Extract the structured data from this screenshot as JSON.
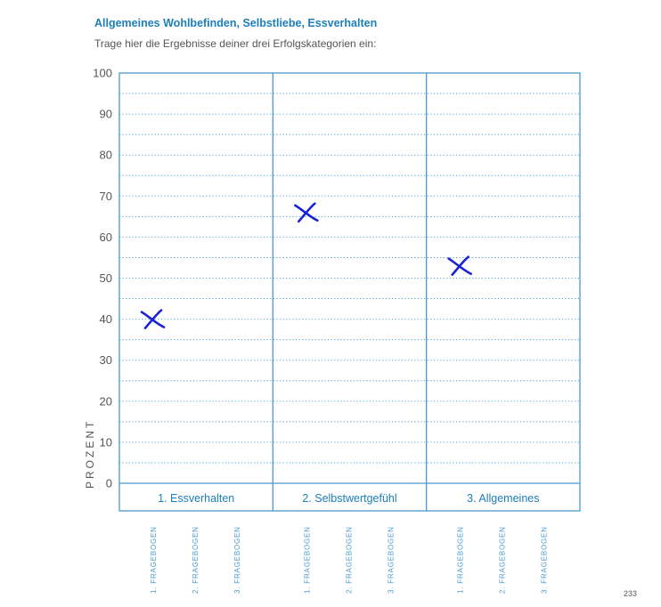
{
  "page": {
    "title": "Allgemeines Wohlbefinden, Selbstliebe, Essverhalten",
    "subtitle": "Trage hier die Ergebnisse deiner drei Erfolgskategorien ein:",
    "page_number": "233"
  },
  "colors": {
    "accent": "#1c7fb9",
    "grid": "#4a9bd0",
    "text": "#555555",
    "marker": "#1a22d6"
  },
  "chart_data": {
    "type": "scatter",
    "title": "",
    "ylabel": "PROZENT",
    "xlabel": "",
    "ylim": [
      0,
      100
    ],
    "yticks": [
      0,
      10,
      20,
      30,
      40,
      50,
      60,
      70,
      80,
      90,
      100
    ],
    "minor_grid": "dotted lines every 5",
    "categories": [
      "1. Essverhalten",
      "2. Selbstwertgefühl",
      "3. Allgemeines"
    ],
    "sub_categories": [
      "1. FRAGEBOGEN",
      "2. FRAGEBOGEN",
      "3. FRAGEBOGEN"
    ],
    "marker": "handwritten X",
    "points": [
      {
        "category": "1. Essverhalten",
        "sub_category": "1. FRAGEBOGEN",
        "y": 40
      },
      {
        "category": "2. Selbstwertgefühl",
        "sub_category": "1. FRAGEBOGEN",
        "y": 66
      },
      {
        "category": "3. Allgemeines",
        "sub_category": "1. FRAGEBOGEN",
        "y": 53
      }
    ]
  }
}
